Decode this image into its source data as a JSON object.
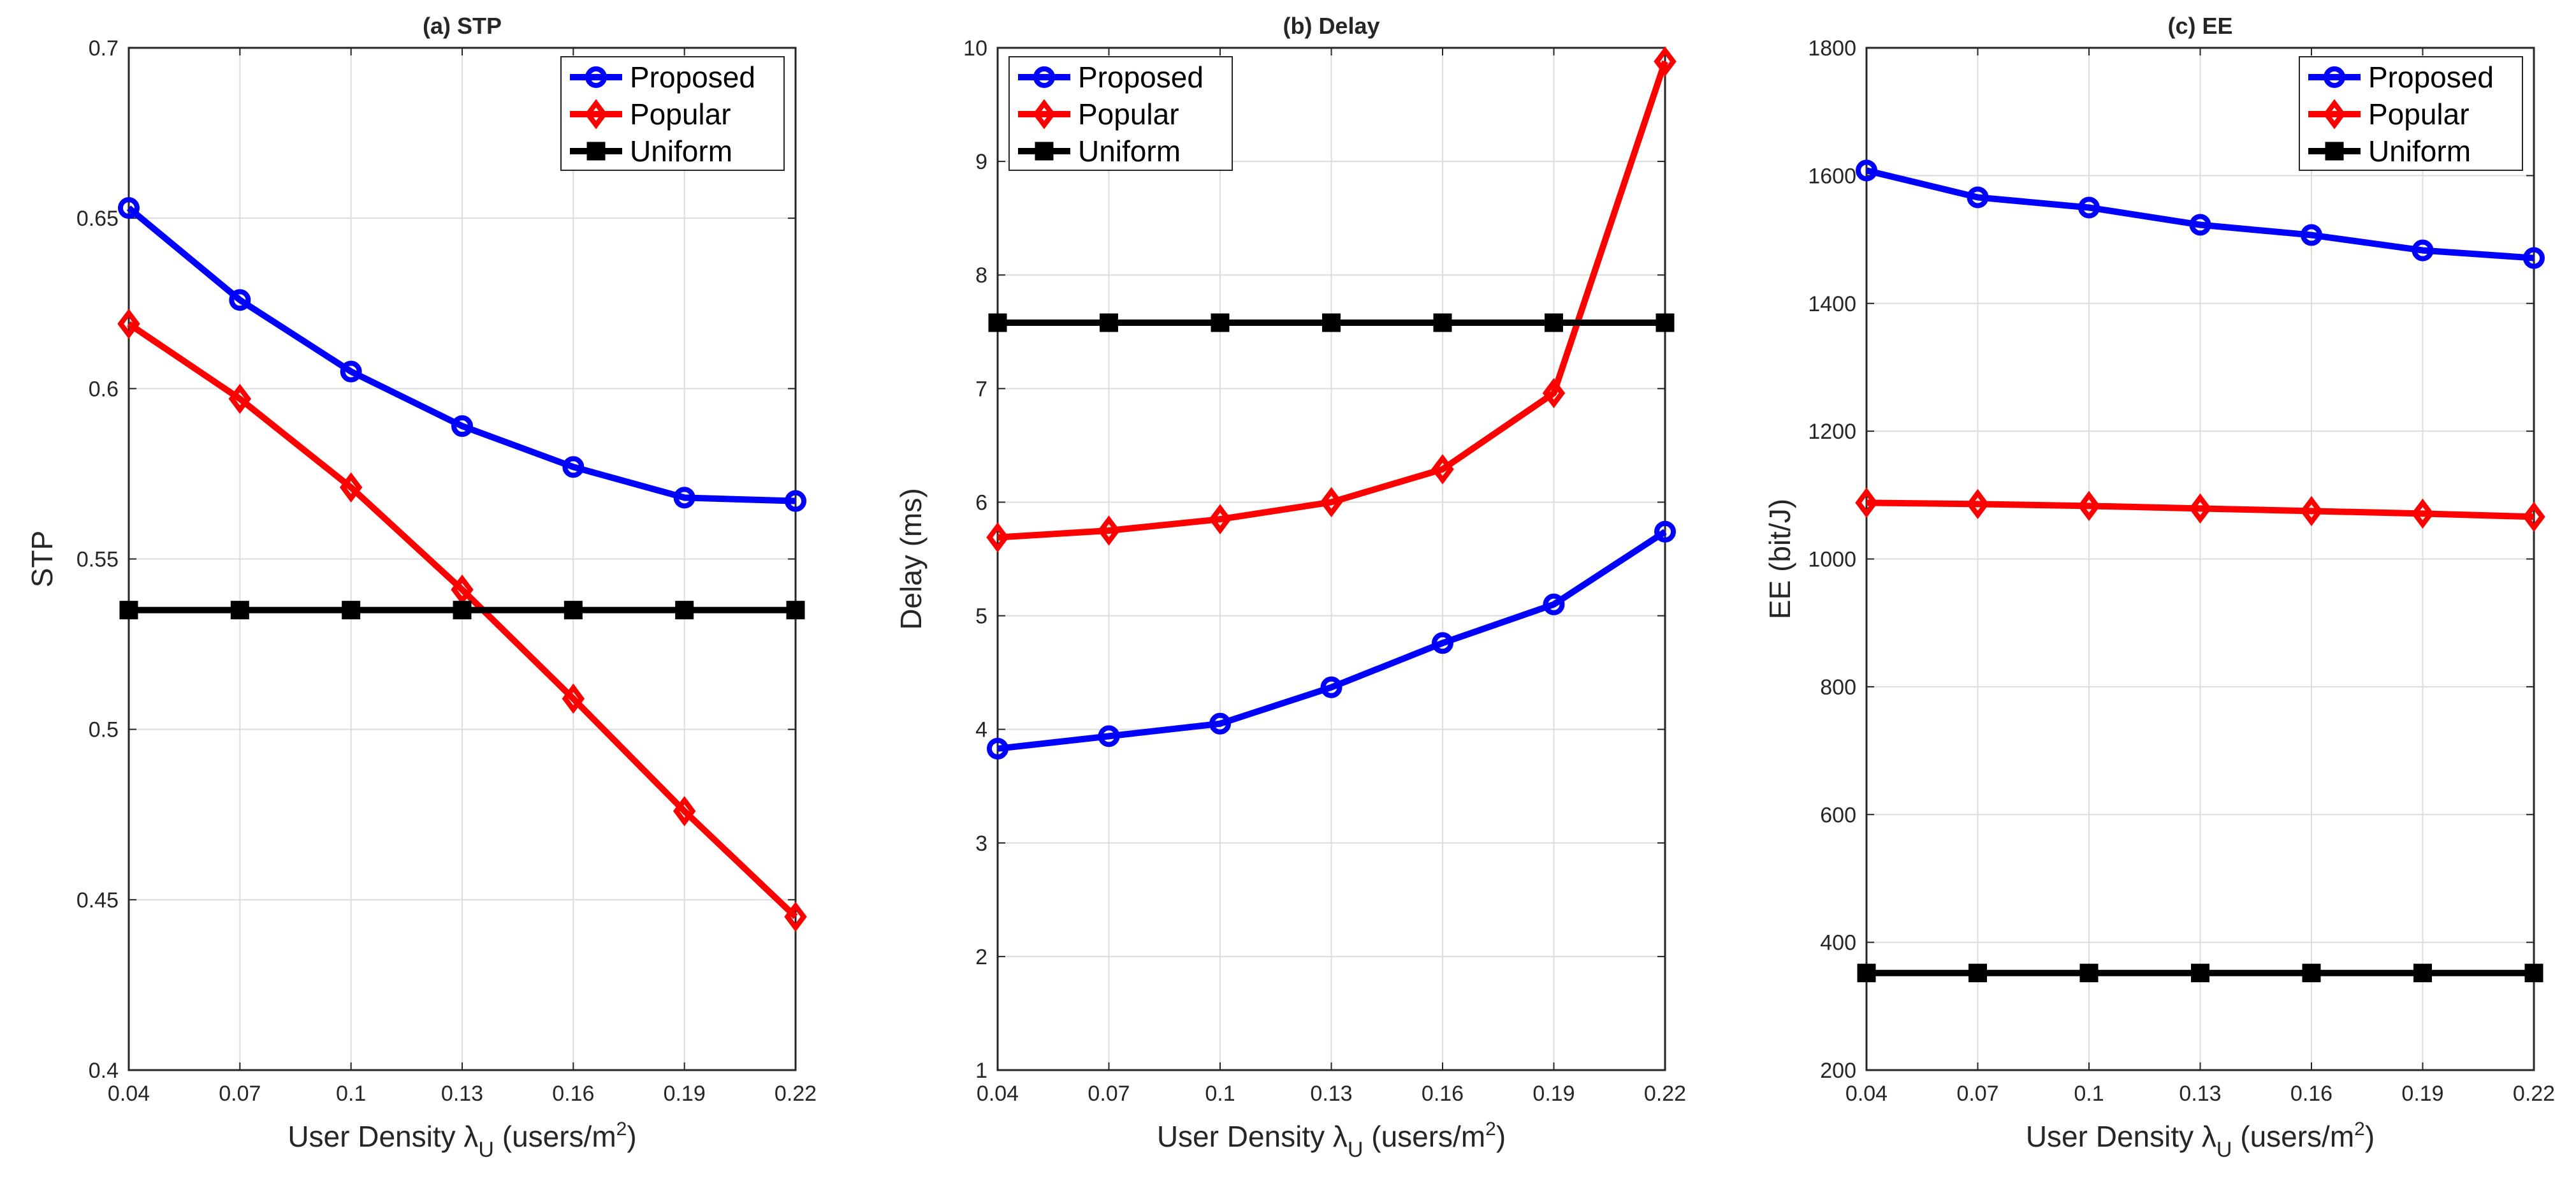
{
  "chart_data": [
    {
      "type": "line",
      "title": "(a) STP",
      "xlabel": "User Density λU (users/m2)",
      "xlabel_parts": {
        "prefix": "User Density ",
        "symbol": "λ",
        "subscript": "U",
        "unit_open": " (users/m",
        "superscript": "2",
        "unit_close": ")"
      },
      "ylabel": "STP",
      "x": [
        0.04,
        0.07,
        0.1,
        0.13,
        0.16,
        0.19,
        0.22
      ],
      "xtick_labels": [
        "0.04",
        "0.07",
        "0.1",
        "0.13",
        "0.16",
        "0.19",
        "0.22"
      ],
      "xlim": [
        0.04,
        0.22
      ],
      "ylim": [
        0.4,
        0.7
      ],
      "yticks": [
        0.4,
        0.45,
        0.5,
        0.55,
        0.6,
        0.65,
        0.7
      ],
      "ytick_labels": [
        "0.4",
        "0.45",
        "0.5",
        "0.55",
        "0.6",
        "0.65",
        "0.7"
      ],
      "grid": true,
      "legend_position": "top-right",
      "series": [
        {
          "name": "Proposed",
          "color": "#0000ff",
          "marker": "circle",
          "values": [
            0.653,
            0.626,
            0.605,
            0.589,
            0.577,
            0.568,
            0.567
          ]
        },
        {
          "name": "Popular",
          "color": "#ff0000",
          "marker": "diamond",
          "values": [
            0.619,
            0.597,
            0.571,
            0.541,
            0.509,
            0.476,
            0.445
          ]
        },
        {
          "name": "Uniform",
          "color": "#000000",
          "marker": "square",
          "values": [
            0.535,
            0.535,
            0.535,
            0.535,
            0.535,
            0.535,
            0.535
          ]
        }
      ]
    },
    {
      "type": "line",
      "title": "(b) Delay",
      "xlabel": "User Density λU (users/m2)",
      "xlabel_parts": {
        "prefix": "User Density ",
        "symbol": "λ",
        "subscript": "U",
        "unit_open": " (users/m",
        "superscript": "2",
        "unit_close": ")"
      },
      "ylabel": "Delay (ms)",
      "x": [
        0.04,
        0.07,
        0.1,
        0.13,
        0.16,
        0.19,
        0.22
      ],
      "xtick_labels": [
        "0.04",
        "0.07",
        "0.1",
        "0.13",
        "0.16",
        "0.19",
        "0.22"
      ],
      "xlim": [
        0.04,
        0.22
      ],
      "ylim": [
        1,
        10
      ],
      "yticks": [
        1,
        2,
        3,
        4,
        5,
        6,
        7,
        8,
        9,
        10
      ],
      "ytick_labels": [
        "1",
        "2",
        "3",
        "4",
        "5",
        "6",
        "7",
        "8",
        "9",
        "10"
      ],
      "grid": true,
      "legend_position": "top-left",
      "series": [
        {
          "name": "Proposed",
          "color": "#0000ff",
          "marker": "circle",
          "values": [
            3.83,
            3.94,
            4.05,
            4.37,
            4.76,
            5.1,
            5.74
          ]
        },
        {
          "name": "Popular",
          "color": "#ff0000",
          "marker": "diamond",
          "values": [
            5.69,
            5.75,
            5.85,
            6.0,
            6.29,
            6.96,
            9.88
          ]
        },
        {
          "name": "Uniform",
          "color": "#000000",
          "marker": "square",
          "values": [
            7.58,
            7.58,
            7.58,
            7.58,
            7.58,
            7.58,
            7.58
          ]
        }
      ]
    },
    {
      "type": "line",
      "title": "(c) EE",
      "xlabel": "User Density λU (users/m2)",
      "xlabel_parts": {
        "prefix": "User Density ",
        "symbol": "λ",
        "subscript": "U",
        "unit_open": " (users/m",
        "superscript": "2",
        "unit_close": ")"
      },
      "ylabel": "EE (bit/J)",
      "x": [
        0.04,
        0.07,
        0.1,
        0.13,
        0.16,
        0.19,
        0.22
      ],
      "xtick_labels": [
        "0.04",
        "0.07",
        "0.1",
        "0.13",
        "0.16",
        "0.19",
        "0.22"
      ],
      "xlim": [
        0.04,
        0.22
      ],
      "ylim": [
        200,
        1800
      ],
      "yticks": [
        200,
        400,
        600,
        800,
        1000,
        1200,
        1400,
        1600,
        1800
      ],
      "ytick_labels": [
        "200",
        "400",
        "600",
        "800",
        "1000",
        "1200",
        "1400",
        "1600",
        "1800"
      ],
      "grid": true,
      "legend_position": "top-right",
      "series": [
        {
          "name": "Proposed",
          "color": "#0000ff",
          "marker": "circle",
          "values": [
            1608,
            1566,
            1550,
            1523,
            1507,
            1483,
            1471
          ]
        },
        {
          "name": "Popular",
          "color": "#ff0000",
          "marker": "diamond",
          "values": [
            1088,
            1086,
            1083,
            1079,
            1075,
            1071,
            1066
          ]
        },
        {
          "name": "Uniform",
          "color": "#000000",
          "marker": "square",
          "values": [
            352,
            352,
            352,
            352,
            352,
            352,
            352
          ]
        }
      ]
    }
  ]
}
